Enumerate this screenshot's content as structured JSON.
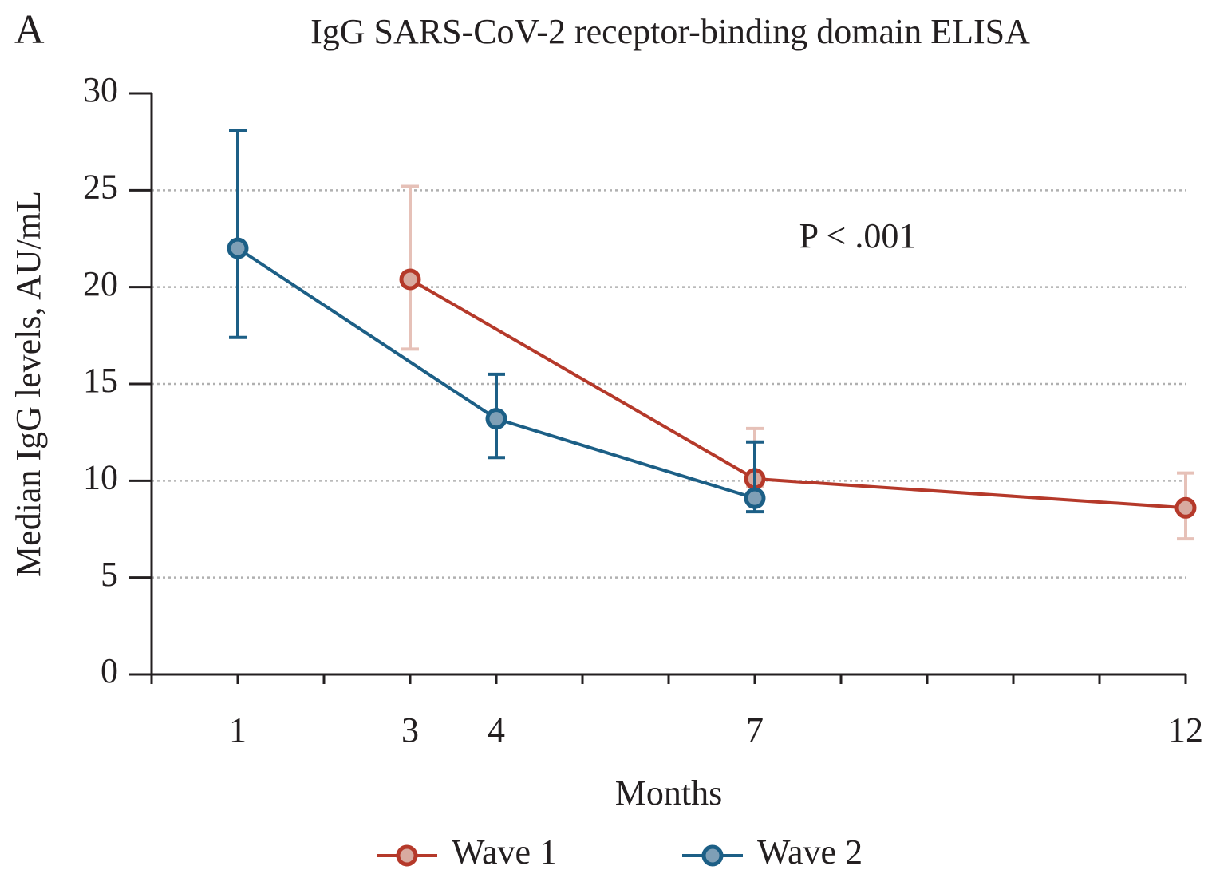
{
  "chart_data": {
    "type": "line",
    "panel_label": "A",
    "title": "IgG SARS-CoV-2 receptor-binding domain ELISA",
    "ylabel": "Median IgG levels, AU/mL",
    "xlabel": "Months",
    "annotation": "P < .001",
    "xlim": [
      0,
      12
    ],
    "xticks": [
      1,
      3,
      4,
      7,
      12
    ],
    "xminorticks": [
      0,
      2,
      5,
      6,
      8,
      9,
      10,
      11
    ],
    "ylim": [
      0,
      30
    ],
    "yticks": [
      0,
      5,
      10,
      15,
      20,
      25,
      30
    ],
    "grid": true,
    "legend": "bottom",
    "series": [
      {
        "name": "Wave 1",
        "color": "#b5392a",
        "errcolor": "#e6c1b8",
        "fillcolor": "#d8aaa0",
        "x": [
          3,
          7,
          12
        ],
        "values": [
          20.4,
          10.1,
          8.6
        ],
        "err_low": [
          16.8,
          9.7,
          7.0
        ],
        "err_high": [
          25.2,
          12.7,
          10.4
        ]
      },
      {
        "name": "Wave 2",
        "color": "#1c5f86",
        "errcolor": "#1c5f86",
        "fillcolor": "#7f9fb6",
        "x": [
          1,
          4,
          7
        ],
        "values": [
          22.0,
          13.2,
          9.1
        ],
        "err_low": [
          17.4,
          11.2,
          8.4
        ],
        "err_high": [
          28.1,
          15.5,
          12.0
        ]
      }
    ]
  }
}
